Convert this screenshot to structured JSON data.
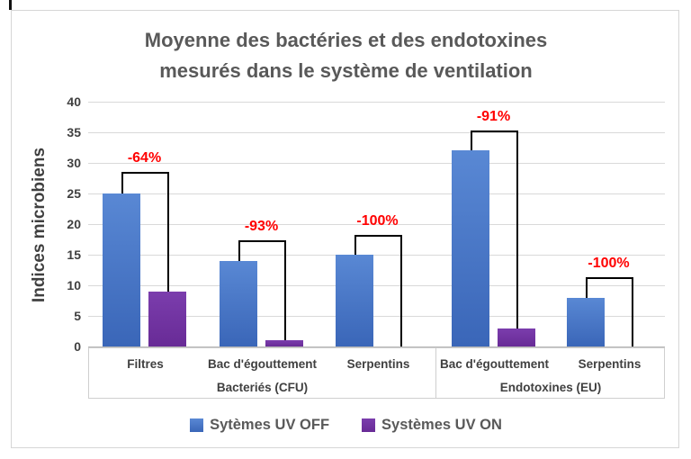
{
  "window": {
    "cursor_artifact": "text-cursor-mark"
  },
  "chart_data": {
    "type": "bar",
    "title_line1": "Moyenne des bactéries et des endotoxines",
    "title_line2": "mesurés dans le système de ventilation",
    "ylabel": "Indices microbiens",
    "ylim": [
      0,
      40
    ],
    "yticks": [
      0,
      5,
      10,
      15,
      20,
      25,
      30,
      35,
      40
    ],
    "grid": true,
    "legend_position": "bottom",
    "categories": [
      "Filtres",
      "Bac d'égouttement",
      "Serpentins",
      "Bac d'égouttement",
      "Serpentins"
    ],
    "category_groups": [
      {
        "label": "Bacteriés (CFU)",
        "span": [
          0,
          2
        ]
      },
      {
        "label": "Endotoxines (EU)",
        "span": [
          3,
          4
        ]
      }
    ],
    "series": [
      {
        "name": "Sytèmes UV OFF",
        "color": "#4472C4",
        "color_top": "#5988d4",
        "color_bottom": "#3a66b8",
        "values": [
          25,
          14,
          15,
          32,
          8
        ]
      },
      {
        "name": "Systèmes UV ON",
        "color": "#7030A0",
        "color_top": "#7b3dad",
        "color_bottom": "#682b96",
        "values": [
          9,
          1,
          0,
          3,
          0
        ]
      }
    ],
    "annotations": [
      {
        "label": "-64%",
        "group": 0,
        "bracket_level": 28.5
      },
      {
        "label": "-93%",
        "group": 1,
        "bracket_level": 17.4
      },
      {
        "label": "-100%",
        "group": 2,
        "bracket_level": 18.2
      },
      {
        "label": "-91%",
        "group": 3,
        "bracket_level": 35.3
      },
      {
        "label": "-100%",
        "group": 4,
        "bracket_level": 11.3
      }
    ],
    "annotation_color": "#FF0000",
    "gridline_color": "#d9d9d9",
    "text_color_dark": "#404040",
    "text_color_title": "#595959"
  }
}
